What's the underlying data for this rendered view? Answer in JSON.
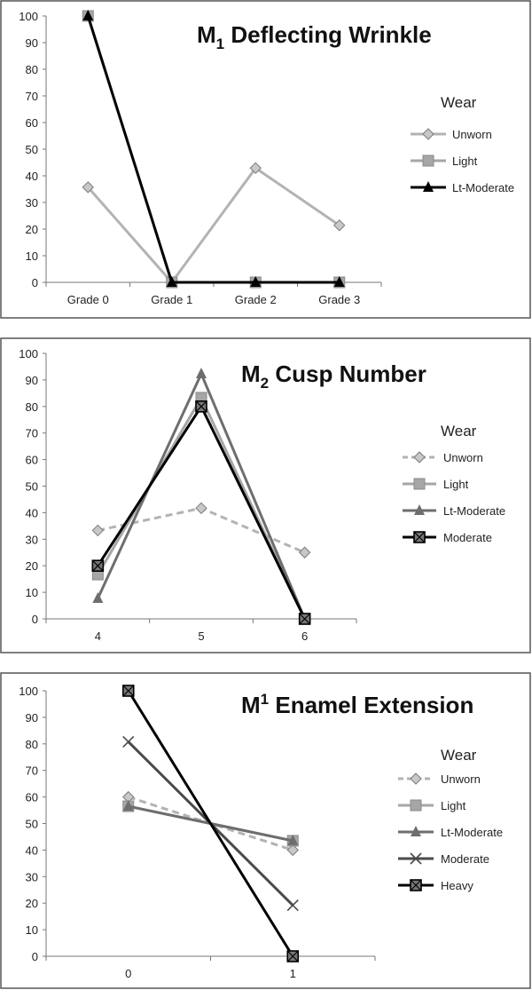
{
  "chart_data": [
    {
      "type": "line",
      "title": {
        "prefix": "M",
        "index": "1",
        "index_pos": "sub",
        "suffix": " Deflecting Wrinkle"
      },
      "categories": [
        "Grade 0",
        "Grade 1",
        "Grade 2",
        "Grade 3"
      ],
      "ylim": [
        0,
        100
      ],
      "yticks": [
        0,
        10,
        20,
        30,
        40,
        50,
        60,
        70,
        80,
        90,
        100
      ],
      "grid": false,
      "legend_title": "Wear",
      "legend_position": "right",
      "series": [
        {
          "name": "Unworn",
          "color": "#b3b3b3",
          "dashed": false,
          "marker": "diamond",
          "values": [
            35.7,
            0,
            42.9,
            21.4
          ]
        },
        {
          "name": "Light",
          "color": "#a6a6a6",
          "dashed": false,
          "marker": "square",
          "values": [
            100,
            0,
            0,
            0
          ]
        },
        {
          "name": "Lt-Moderate",
          "color": "#000000",
          "dashed": false,
          "marker": "triangle",
          "values": [
            100,
            0,
            0,
            0
          ]
        }
      ]
    },
    {
      "type": "line",
      "title": {
        "prefix": "M",
        "index": "2",
        "index_pos": "sub",
        "suffix": " Cusp Number"
      },
      "categories": [
        "4",
        "5",
        "6"
      ],
      "ylim": [
        0,
        100
      ],
      "yticks": [
        0,
        10,
        20,
        30,
        40,
        50,
        60,
        70,
        80,
        90,
        100
      ],
      "grid": false,
      "legend_title": "Wear",
      "legend_position": "right",
      "series": [
        {
          "name": "Unworn",
          "color": "#b3b3b3",
          "dashed": true,
          "marker": "diamond",
          "values": [
            33.3,
            41.7,
            25
          ]
        },
        {
          "name": "Light",
          "color": "#a6a6a6",
          "dashed": false,
          "marker": "square",
          "values": [
            16.7,
            83.3,
            0
          ]
        },
        {
          "name": "Lt-Moderate",
          "color": "#6e6e6e",
          "dashed": false,
          "marker": "triangle",
          "values": [
            7.7,
            92.3,
            0
          ]
        },
        {
          "name": "Moderate",
          "color": "#000000",
          "dashed": false,
          "marker": "xsquare",
          "values": [
            20,
            80,
            0
          ]
        }
      ]
    },
    {
      "type": "line",
      "title": {
        "prefix": "M",
        "index": "1",
        "index_pos": "sup",
        "suffix": " Enamel Extension"
      },
      "categories": [
        "0",
        "1"
      ],
      "ylim": [
        0,
        100
      ],
      "yticks": [
        0,
        10,
        20,
        30,
        40,
        50,
        60,
        70,
        80,
        90,
        100
      ],
      "grid": false,
      "legend_title": "Wear",
      "legend_position": "right",
      "series": [
        {
          "name": "Unworn",
          "color": "#b3b3b3",
          "dashed": true,
          "marker": "diamond",
          "values": [
            60,
            40
          ]
        },
        {
          "name": "Light",
          "color": "#a6a6a6",
          "dashed": false,
          "marker": "square",
          "values": [
            56.5,
            43.5
          ]
        },
        {
          "name": "Lt-Moderate",
          "color": "#6e6e6e",
          "dashed": false,
          "marker": "triangle",
          "values": [
            56.5,
            43.5
          ]
        },
        {
          "name": "Moderate",
          "color": "#4a4a4a",
          "dashed": false,
          "marker": "x",
          "values": [
            80.8,
            19.2
          ]
        },
        {
          "name": "Heavy",
          "color": "#000000",
          "dashed": false,
          "marker": "xsquare",
          "values": [
            100,
            0
          ]
        }
      ]
    }
  ]
}
